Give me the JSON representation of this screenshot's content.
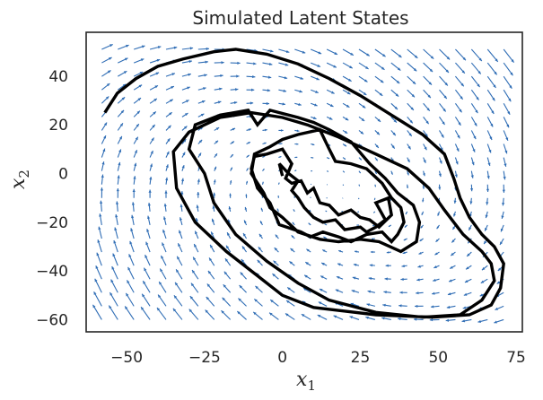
{
  "chart_data": {
    "type": "line",
    "title": "Simulated Latent States",
    "xlabel": {
      "base": "x",
      "sub": "1"
    },
    "ylabel": {
      "base": "x",
      "sub": "2"
    },
    "xlim": [
      -63,
      77
    ],
    "ylim": [
      -65,
      58
    ],
    "xticks": [
      -50,
      -25,
      0,
      25,
      50,
      75
    ],
    "yticks": [
      -60,
      -40,
      -20,
      0,
      20,
      40
    ],
    "xtick_labels": [
      "−50",
      "−25",
      "0",
      "25",
      "50",
      "75"
    ],
    "ytick_labels": [
      "−60",
      "−40",
      "−20",
      "0",
      "20",
      "40"
    ],
    "grid": false,
    "colors": {
      "trajectory": "#000000",
      "quiver": "#2f6db5",
      "axes": "#262626"
    },
    "vector_field": {
      "center": [
        15,
        -8
      ],
      "matrix": [
        [
          -0.02,
          0.55
        ],
        [
          -0.55,
          -0.35
        ]
      ],
      "x_grid": [
        -58,
        71,
        26
      ],
      "y_grid": [
        -60,
        51,
        21
      ],
      "scale": 0.105
    },
    "series": [
      {
        "values_xy": [
          [
            -57,
            25
          ],
          [
            -53,
            33
          ],
          [
            -47,
            39
          ],
          [
            -40,
            44
          ],
          [
            -32,
            47
          ],
          [
            -22,
            50
          ],
          [
            -15,
            51
          ],
          [
            -5,
            49
          ],
          [
            5,
            45
          ],
          [
            15,
            39
          ],
          [
            25,
            32
          ],
          [
            35,
            24
          ],
          [
            45,
            16
          ],
          [
            52,
            8
          ],
          [
            55,
            -2
          ],
          [
            57,
            -10
          ],
          [
            60,
            -18
          ],
          [
            64,
            -25
          ],
          [
            68,
            -30
          ],
          [
            71,
            -37
          ],
          [
            70,
            -47
          ],
          [
            67,
            -54
          ],
          [
            60,
            -58
          ],
          [
            48,
            -59
          ],
          [
            30,
            -58
          ],
          [
            10,
            -55
          ],
          [
            0,
            -50
          ],
          [
            -8,
            -42
          ],
          [
            -18,
            -32
          ],
          [
            -28,
            -20
          ],
          [
            -34,
            -6
          ],
          [
            -35,
            9
          ],
          [
            -30,
            17
          ],
          [
            -20,
            23
          ],
          [
            -10,
            25
          ],
          [
            0,
            23
          ],
          [
            8,
            20
          ],
          [
            18,
            15
          ],
          [
            30,
            8
          ],
          [
            40,
            2
          ],
          [
            47,
            -6
          ],
          [
            52,
            -15
          ],
          [
            58,
            -25
          ],
          [
            64,
            -32
          ],
          [
            67,
            -37
          ],
          [
            68,
            -44
          ],
          [
            64,
            -52
          ],
          [
            57,
            -58
          ],
          [
            45,
            -59
          ],
          [
            30,
            -57
          ],
          [
            15,
            -52
          ],
          [
            5,
            -45
          ],
          [
            -5,
            -36
          ],
          [
            -15,
            -25
          ],
          [
            -22,
            -12
          ],
          [
            -25,
            0
          ],
          [
            -30,
            10
          ],
          [
            -28,
            20
          ],
          [
            -20,
            24
          ],
          [
            -11,
            26
          ],
          [
            -8,
            20
          ],
          [
            -4,
            26
          ],
          [
            5,
            23
          ],
          [
            10,
            21
          ],
          [
            15,
            18
          ],
          [
            22,
            13
          ],
          [
            28,
            4
          ],
          [
            33,
            -2
          ],
          [
            37,
            -8
          ],
          [
            42,
            -13
          ],
          [
            44,
            -20
          ],
          [
            43,
            -28
          ],
          [
            38,
            -32
          ],
          [
            31,
            -28
          ],
          [
            25,
            -27
          ],
          [
            18,
            -28
          ],
          [
            12,
            -27
          ],
          [
            5,
            -24
          ],
          [
            0,
            -18
          ],
          [
            -4,
            -14
          ],
          [
            -6,
            -8
          ],
          [
            -10,
            0
          ],
          [
            -9,
            8
          ],
          [
            -4,
            11
          ],
          [
            0,
            14
          ],
          [
            5,
            16
          ],
          [
            12,
            18
          ],
          [
            15,
            10
          ],
          [
            17,
            5
          ],
          [
            22,
            4
          ],
          [
            27,
            2
          ],
          [
            32,
            -4
          ],
          [
            35,
            -10
          ],
          [
            38,
            -14
          ],
          [
            39,
            -20
          ],
          [
            37,
            -25
          ],
          [
            35,
            -28
          ],
          [
            32,
            -24
          ],
          [
            27,
            -25
          ],
          [
            22,
            -28
          ],
          [
            18,
            -26
          ],
          [
            13,
            -24
          ],
          [
            9,
            -26
          ],
          [
            6,
            -24
          ],
          [
            -1,
            -21
          ],
          [
            -4,
            -12
          ],
          [
            -8,
            -6
          ],
          [
            -10,
            2
          ],
          [
            -9,
            7
          ],
          [
            -5,
            8
          ],
          [
            0,
            10
          ],
          [
            3,
            4
          ],
          [
            1,
            -2
          ],
          [
            3,
            -4
          ],
          [
            6,
            -3
          ],
          [
            8,
            -8
          ],
          [
            10,
            -6
          ],
          [
            12,
            -12
          ],
          [
            15,
            -13
          ],
          [
            18,
            -17
          ],
          [
            22,
            -15
          ],
          [
            25,
            -18
          ],
          [
            28,
            -19
          ],
          [
            31,
            -22
          ],
          [
            35,
            -17
          ],
          [
            34,
            -10
          ],
          [
            32,
            -11
          ],
          [
            30,
            -12
          ],
          [
            33,
            -19
          ],
          [
            30,
            -22
          ],
          [
            27,
            -24
          ],
          [
            25,
            -22
          ],
          [
            20,
            -23
          ],
          [
            17,
            -19
          ],
          [
            13,
            -20
          ],
          [
            10,
            -18
          ],
          [
            7,
            -14
          ],
          [
            5,
            -10
          ],
          [
            3,
            -7
          ],
          [
            5,
            -3
          ],
          [
            2,
            0
          ],
          [
            -1,
            4
          ],
          [
            0,
            -1
          ]
        ]
      }
    ]
  }
}
